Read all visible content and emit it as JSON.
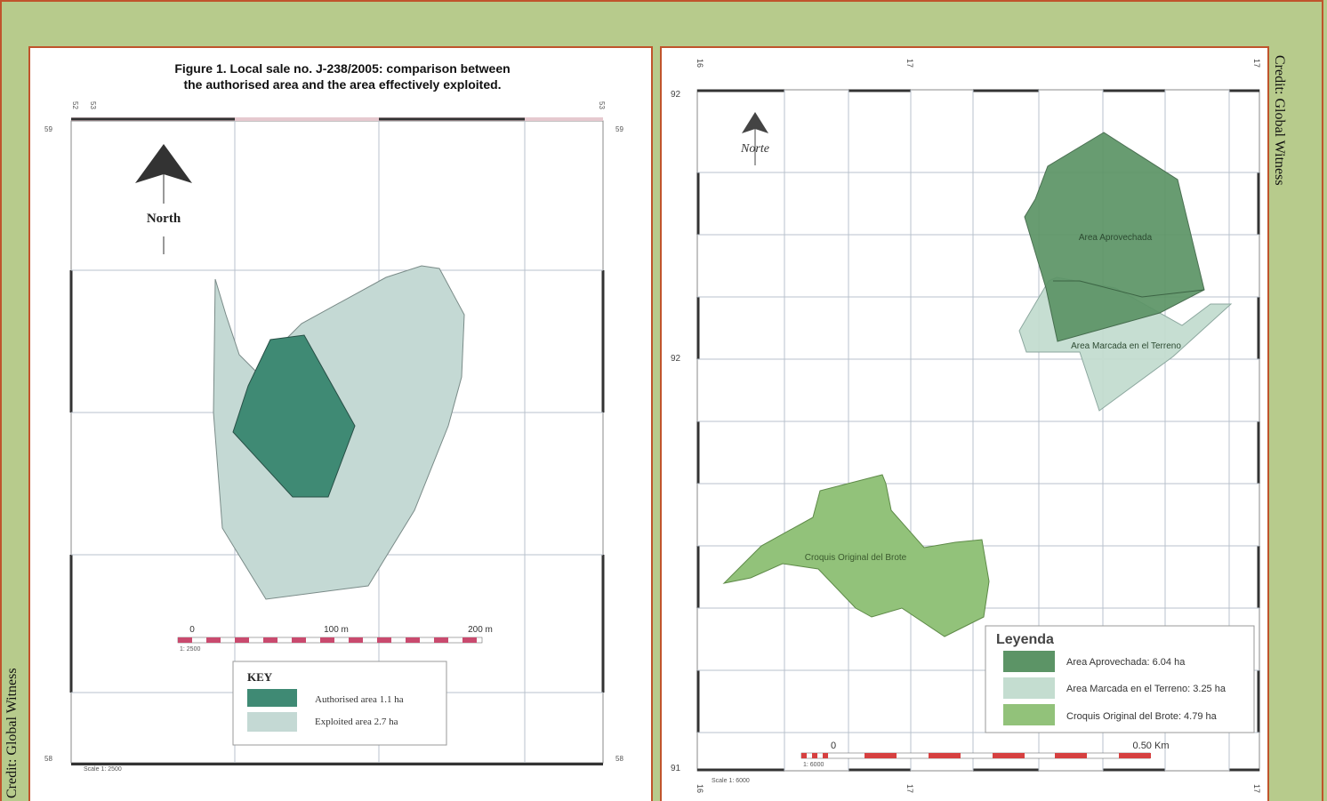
{
  "credits": {
    "left": "Credit: Global Witness",
    "right": "Credit: Global Witness"
  },
  "left_map": {
    "title_line1": "Figure 1. Local sale no. J-238/2005: comparison between",
    "title_line2": "the authorised area and the area effectively exploited.",
    "north_label": "North",
    "scale": {
      "labels": [
        "0",
        "100 m",
        "200 m"
      ],
      "ratio": "1: 2500"
    },
    "scale_note": "Scale 1: 2500",
    "key": {
      "heading": "KEY",
      "items": [
        {
          "label": "Authorised area 1.1 ha",
          "color": "#3f8a74"
        },
        {
          "label": "Exploited area 2.7 ha",
          "color": "#c4d9d4"
        }
      ]
    },
    "grid_labels": {
      "top_left": "52",
      "top_left2": "53",
      "top_right": "53",
      "row_top": "59",
      "row_top_right": "59",
      "row_bottom": "58",
      "row_bottom_right": "58"
    }
  },
  "right_map": {
    "north_label": "Norte",
    "areas": [
      {
        "label": "Area Aprovechada",
        "color": "#5c9466"
      },
      {
        "label": "Area Marcada en el Terreno",
        "color": "#c4ddd0"
      },
      {
        "label": "Croquis Original del Brote",
        "color": "#92c27a"
      }
    ],
    "legend": {
      "heading": "Leyenda",
      "items": [
        {
          "label": "Area Aprovechada: 6.04 ha",
          "color": "#5c9466"
        },
        {
          "label": "Area Marcada en el Terreno: 3.25 ha",
          "color": "#c4ddd0"
        },
        {
          "label": "Croquis Original del Brote: 4.79 ha",
          "color": "#92c27a"
        }
      ]
    },
    "scale": {
      "labels": [
        "0",
        "0.50 Km"
      ],
      "ratio": "1: 6000"
    },
    "scale_note": "Scale 1: 6000",
    "grid_labels": {
      "top1": "16",
      "top2": "17",
      "top3": "17",
      "row1": "92",
      "row2": "92",
      "row3": "91",
      "bottom1": "16",
      "bottom2": "17",
      "bottom3": "17"
    }
  }
}
